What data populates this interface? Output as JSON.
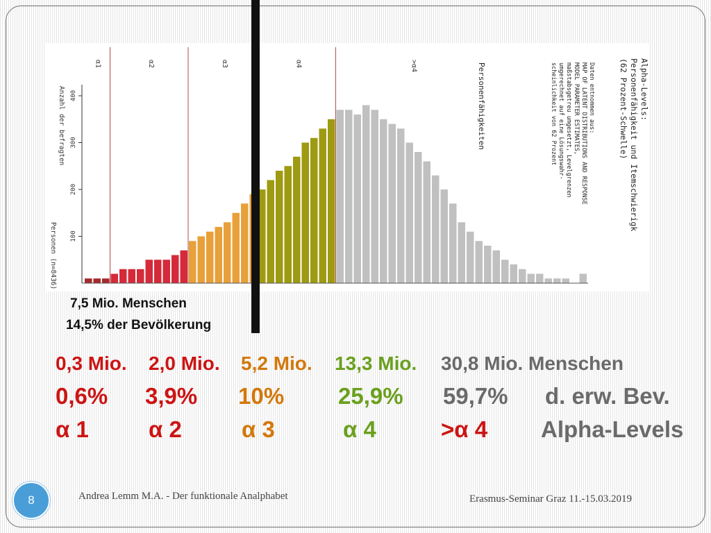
{
  "chart_data": {
    "type": "bar",
    "ylabel": "Anzahl der befragten Personen (n=8436)",
    "xlabel": "Personenfähigkeiten",
    "yticks": [
      100,
      200,
      300,
      400
    ],
    "ylim": [
      0,
      450
    ],
    "level_labels": [
      "α1",
      "α2",
      "α3",
      "α4",
      ">α4"
    ],
    "title_lines": [
      "Alpha-Levels:",
      "Personenfähigkeit und Itemschwierigk",
      "(62 Prozent-Schwelle)"
    ],
    "note_lines": [
      "Daten entnommen aus:",
      "MAP OF LATENT DISTRIBUTIONS AND RESPONSE",
      "MODEL PARAMETER ESTIMATES,",
      "maßstabsgetreu umgesetzt, Levelgrenzen",
      "umgerechnet auf eine Lösungswahr-",
      "scheinlichkeit von 62 Prozent"
    ],
    "series": [
      {
        "level": "α1",
        "color": "#a52a2a",
        "values": [
          10,
          10,
          10
        ]
      },
      {
        "level": "α2",
        "color": "#d42a3a",
        "values": [
          20,
          30,
          30,
          30,
          50,
          50,
          50,
          60,
          70
        ]
      },
      {
        "level": "α3",
        "color": "#e8a03a",
        "values": [
          90,
          100,
          110,
          120,
          130,
          150,
          170,
          190
        ]
      },
      {
        "level": "α4",
        "color": "#9e9a12",
        "values": [
          200,
          220,
          240,
          250,
          270,
          300,
          310,
          330,
          350
        ]
      },
      {
        "level": ">α4",
        "color": "#c0c0c0",
        "values": [
          370,
          370,
          360,
          380,
          370,
          350,
          340,
          330,
          300,
          280,
          260,
          230,
          200,
          170,
          130,
          110,
          90,
          80,
          70,
          50,
          40,
          30,
          20,
          20,
          10,
          10,
          10,
          null,
          20
        ]
      }
    ]
  },
  "labels": {
    "menschen": "7,5 Mio. Menschen",
    "pct": "14,5% der Bevölkerung"
  },
  "summary": {
    "row1": [
      "0,3 Mio.",
      "2,0 Mio.",
      "5,2 Mio.",
      "13,3 Mio.",
      "30,8 Mio. Menschen"
    ],
    "row2": [
      "0,6%",
      "3,9%",
      "10%",
      "25,9%",
      "59,7%",
      "d. erw. Bev."
    ],
    "row3": [
      "α 1",
      "α 2",
      "α 3",
      "α 4",
      ">α 4",
      "Alpha-Levels"
    ]
  },
  "footer": {
    "page": "8",
    "left": "Andrea Lemm M.A.  -  Der funktionale Analphabet",
    "right": "Erasmus-Seminar Graz 11.-15.03.2019"
  },
  "colors": {
    "red": "#cc1414",
    "orange": "#d2780c",
    "green": "#6aa01e",
    "gray": "#6a6a6a",
    "badge": "#4a9ed8"
  }
}
